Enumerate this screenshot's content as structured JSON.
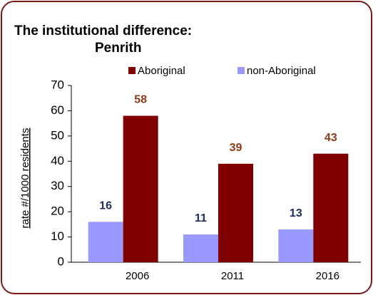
{
  "chart_data": {
    "type": "bar",
    "title": [
      "The institutional difference:",
      "Penrith"
    ],
    "y_label": "rate #/1000 residents",
    "categories": [
      "2006",
      "2011",
      "2016"
    ],
    "series": [
      {
        "name": "Aboriginal",
        "color": "#800000",
        "label_color": "#8b3a1a",
        "values": [
          58,
          39,
          43
        ]
      },
      {
        "name": "non-Aboriginal",
        "color": "#9999ff",
        "label_color": "#1f2d5c",
        "values": [
          16,
          11,
          13
        ]
      }
    ],
    "ylim": [
      0,
      70
    ],
    "yticks": [
      0,
      10,
      20,
      30,
      40,
      50,
      60,
      70
    ],
    "grid": false
  }
}
